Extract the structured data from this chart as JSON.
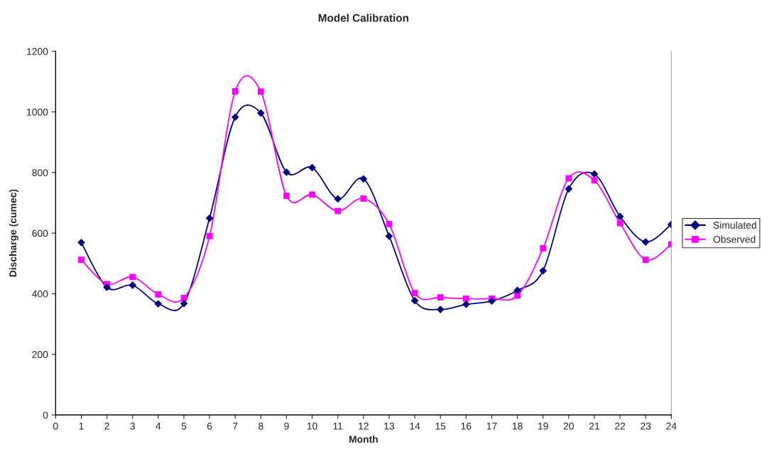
{
  "chart_data": {
    "type": "line",
    "title": "Model Calibration",
    "xlabel": "Month",
    "ylabel": "Discharge (cumec)",
    "x": [
      1,
      2,
      3,
      4,
      5,
      6,
      7,
      8,
      9,
      10,
      11,
      12,
      13,
      14,
      15,
      16,
      17,
      18,
      19,
      20,
      21,
      22,
      23,
      24
    ],
    "series": [
      {
        "name": "Simulated",
        "color": "#000080",
        "marker": "diamond",
        "values": [
          569,
          421,
          428,
          367,
          368,
          649,
          983,
          996,
          801,
          816,
          713,
          779,
          590,
          377,
          348,
          365,
          376,
          411,
          476,
          746,
          795,
          655,
          571,
          629
        ]
      },
      {
        "name": "Observed",
        "color": "#ff00ff",
        "marker": "square",
        "values": [
          512,
          432,
          455,
          398,
          386,
          590,
          1068,
          1067,
          723,
          727,
          673,
          714,
          630,
          402,
          388,
          384,
          384,
          394,
          550,
          781,
          774,
          633,
          512,
          563
        ]
      }
    ],
    "xlim": [
      0,
      24
    ],
    "xticks": [
      0,
      1,
      2,
      3,
      4,
      5,
      6,
      7,
      8,
      9,
      10,
      11,
      12,
      13,
      14,
      15,
      16,
      17,
      18,
      19,
      20,
      21,
      22,
      23,
      24
    ],
    "ylim": [
      0,
      1200
    ],
    "yticks": [
      0,
      200,
      400,
      600,
      800,
      1000,
      1200
    ],
    "grid": false,
    "legend": "right",
    "line_style": "solid"
  }
}
